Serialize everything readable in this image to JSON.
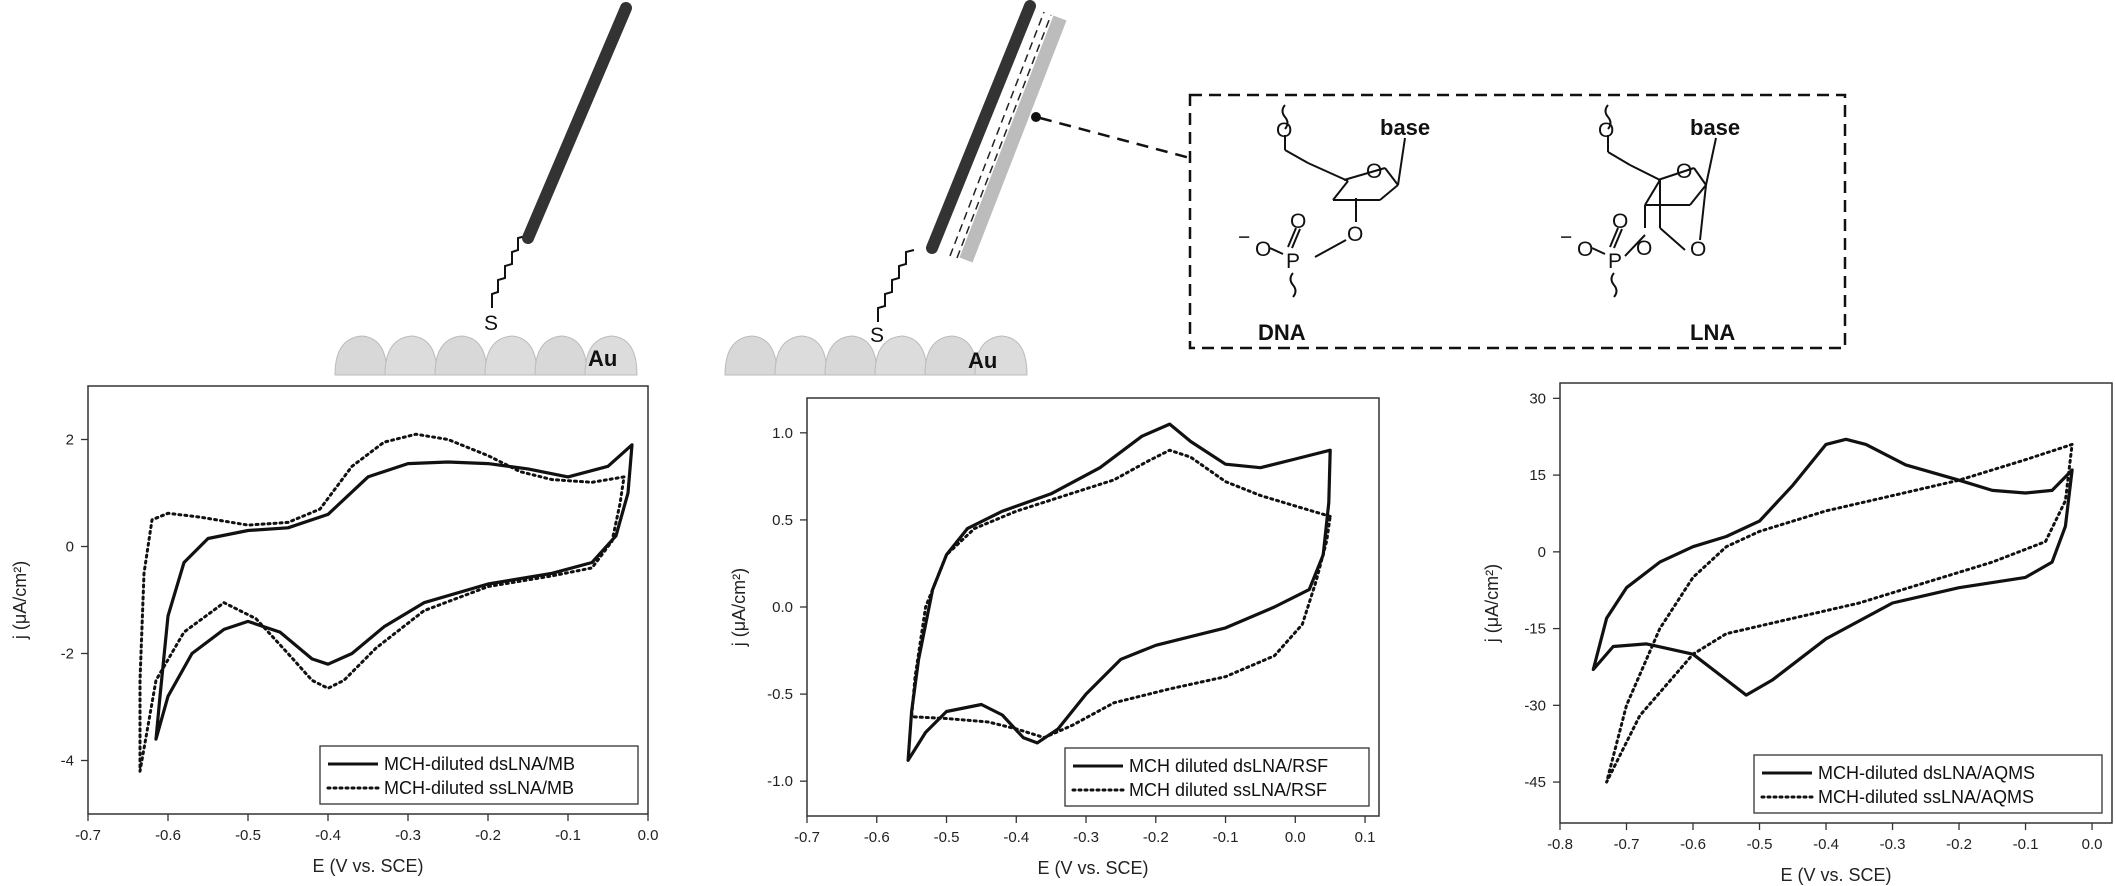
{
  "schematic": {
    "sulfur_label": "S",
    "gold_label": "Au",
    "inset": {
      "base_label": "base",
      "dna_label": "DNA",
      "lna_label": "LNA",
      "oxygen": "O",
      "phosphorus": "P",
      "charge": "−"
    }
  },
  "chart_data": [
    {
      "type": "line",
      "xlabel": "E (V vs. SCE)",
      "ylabel": "j (μA/cm²)",
      "xlim": [
        -0.7,
        0.0
      ],
      "ylim": [
        -5,
        3
      ],
      "xticks": [
        -0.7,
        -0.6,
        -0.5,
        -0.4,
        -0.3,
        -0.2,
        -0.1,
        0.0
      ],
      "xtick_labels": [
        "-0.7",
        "-0.6",
        "-0.5",
        "-0.4",
        "-0.3",
        "-0.2",
        "-0.1",
        "0.0"
      ],
      "yticks": [
        -4,
        -2,
        0,
        2
      ],
      "ytick_labels": [
        "-4",
        "-2",
        "0",
        "2"
      ],
      "legend_position": "bottom-right",
      "series": [
        {
          "name": "MCH-diluted dsLNA/MB",
          "style": "solid",
          "points": [
            [
              -0.02,
              1.9
            ],
            [
              -0.05,
              1.5
            ],
            [
              -0.1,
              1.3
            ],
            [
              -0.15,
              1.45
            ],
            [
              -0.2,
              1.55
            ],
            [
              -0.25,
              1.58
            ],
            [
              -0.3,
              1.55
            ],
            [
              -0.35,
              1.3
            ],
            [
              -0.4,
              0.6
            ],
            [
              -0.45,
              0.35
            ],
            [
              -0.5,
              0.3
            ],
            [
              -0.55,
              0.15
            ],
            [
              -0.58,
              -0.3
            ],
            [
              -0.6,
              -1.3
            ],
            [
              -0.61,
              -2.8
            ],
            [
              -0.615,
              -3.6
            ],
            [
              -0.6,
              -2.8
            ],
            [
              -0.57,
              -2.0
            ],
            [
              -0.53,
              -1.55
            ],
            [
              -0.5,
              -1.4
            ],
            [
              -0.46,
              -1.6
            ],
            [
              -0.42,
              -2.1
            ],
            [
              -0.4,
              -2.2
            ],
            [
              -0.37,
              -2.0
            ],
            [
              -0.33,
              -1.5
            ],
            [
              -0.28,
              -1.05
            ],
            [
              -0.2,
              -0.7
            ],
            [
              -0.12,
              -0.5
            ],
            [
              -0.07,
              -0.3
            ],
            [
              -0.04,
              0.2
            ],
            [
              -0.025,
              1.0
            ],
            [
              -0.02,
              1.9
            ]
          ]
        },
        {
          "name": "MCH-diluted ssLNA/MB",
          "style": "dotted",
          "points": [
            [
              -0.03,
              1.3
            ],
            [
              -0.07,
              1.2
            ],
            [
              -0.12,
              1.25
            ],
            [
              -0.16,
              1.4
            ],
            [
              -0.2,
              1.7
            ],
            [
              -0.25,
              2.0
            ],
            [
              -0.29,
              2.1
            ],
            [
              -0.33,
              1.95
            ],
            [
              -0.37,
              1.5
            ],
            [
              -0.41,
              0.7
            ],
            [
              -0.45,
              0.45
            ],
            [
              -0.5,
              0.4
            ],
            [
              -0.56,
              0.55
            ],
            [
              -0.6,
              0.62
            ],
            [
              -0.62,
              0.5
            ],
            [
              -0.63,
              -0.5
            ],
            [
              -0.635,
              -2.5
            ],
            [
              -0.635,
              -4.2
            ],
            [
              -0.615,
              -2.5
            ],
            [
              -0.58,
              -1.6
            ],
            [
              -0.53,
              -1.05
            ],
            [
              -0.49,
              -1.35
            ],
            [
              -0.45,
              -2.0
            ],
            [
              -0.42,
              -2.5
            ],
            [
              -0.4,
              -2.65
            ],
            [
              -0.38,
              -2.5
            ],
            [
              -0.34,
              -1.9
            ],
            [
              -0.28,
              -1.2
            ],
            [
              -0.2,
              -0.75
            ],
            [
              -0.12,
              -0.55
            ],
            [
              -0.07,
              -0.4
            ],
            [
              -0.045,
              0.1
            ],
            [
              -0.035,
              0.8
            ],
            [
              -0.03,
              1.3
            ]
          ]
        }
      ]
    },
    {
      "type": "line",
      "xlabel": "E (V vs. SCE)",
      "ylabel": "j (μA/cm²)",
      "xlim": [
        -0.7,
        0.12
      ],
      "ylim": [
        -1.2,
        1.2
      ],
      "xticks": [
        -0.7,
        -0.6,
        -0.5,
        -0.4,
        -0.3,
        -0.2,
        -0.1,
        0.0,
        0.1
      ],
      "xtick_labels": [
        "-0.7",
        "-0.6",
        "-0.5",
        "-0.4",
        "-0.3",
        "-0.2",
        "-0.1",
        "0.0",
        "0.1"
      ],
      "yticks": [
        -1.0,
        -0.5,
        0.0,
        0.5,
        1.0
      ],
      "ytick_labels": [
        "-1.0",
        "-0.5",
        "0.0",
        "0.5",
        "1.0"
      ],
      "legend_position": "bottom-right",
      "series": [
        {
          "name": "MCH diluted dsLNA/RSF",
          "style": "solid",
          "points": [
            [
              0.05,
              0.9
            ],
            [
              0.0,
              0.85
            ],
            [
              -0.05,
              0.8
            ],
            [
              -0.1,
              0.82
            ],
            [
              -0.15,
              0.95
            ],
            [
              -0.18,
              1.05
            ],
            [
              -0.22,
              0.98
            ],
            [
              -0.28,
              0.8
            ],
            [
              -0.35,
              0.65
            ],
            [
              -0.42,
              0.55
            ],
            [
              -0.47,
              0.45
            ],
            [
              -0.5,
              0.3
            ],
            [
              -0.52,
              0.1
            ],
            [
              -0.54,
              -0.3
            ],
            [
              -0.55,
              -0.6
            ],
            [
              -0.555,
              -0.88
            ],
            [
              -0.53,
              -0.72
            ],
            [
              -0.5,
              -0.6
            ],
            [
              -0.45,
              -0.56
            ],
            [
              -0.42,
              -0.62
            ],
            [
              -0.39,
              -0.75
            ],
            [
              -0.37,
              -0.78
            ],
            [
              -0.34,
              -0.7
            ],
            [
              -0.3,
              -0.5
            ],
            [
              -0.25,
              -0.3
            ],
            [
              -0.2,
              -0.22
            ],
            [
              -0.1,
              -0.12
            ],
            [
              -0.03,
              0.0
            ],
            [
              0.02,
              0.1
            ],
            [
              0.04,
              0.3
            ],
            [
              0.048,
              0.6
            ],
            [
              0.05,
              0.9
            ]
          ]
        },
        {
          "name": "MCH diluted ssLNA/RSF",
          "style": "dotted",
          "points": [
            [
              0.05,
              0.52
            ],
            [
              0.0,
              0.58
            ],
            [
              -0.05,
              0.64
            ],
            [
              -0.1,
              0.72
            ],
            [
              -0.15,
              0.86
            ],
            [
              -0.18,
              0.9
            ],
            [
              -0.21,
              0.84
            ],
            [
              -0.26,
              0.73
            ],
            [
              -0.33,
              0.64
            ],
            [
              -0.4,
              0.55
            ],
            [
              -0.46,
              0.45
            ],
            [
              -0.5,
              0.3
            ],
            [
              -0.53,
              0.0
            ],
            [
              -0.545,
              -0.4
            ],
            [
              -0.55,
              -0.63
            ],
            [
              -0.5,
              -0.64
            ],
            [
              -0.44,
              -0.66
            ],
            [
              -0.4,
              -0.7
            ],
            [
              -0.36,
              -0.75
            ],
            [
              -0.32,
              -0.68
            ],
            [
              -0.26,
              -0.55
            ],
            [
              -0.18,
              -0.47
            ],
            [
              -0.1,
              -0.4
            ],
            [
              -0.03,
              -0.28
            ],
            [
              0.01,
              -0.1
            ],
            [
              0.03,
              0.15
            ],
            [
              0.045,
              0.38
            ],
            [
              0.05,
              0.52
            ]
          ]
        }
      ]
    },
    {
      "type": "line",
      "xlabel": "E (V vs. SCE)",
      "ylabel": "j (μA/cm²)",
      "xlim": [
        -0.8,
        0.03
      ],
      "ylim": [
        -53,
        33
      ],
      "xticks": [
        -0.8,
        -0.7,
        -0.6,
        -0.5,
        -0.4,
        -0.3,
        -0.2,
        -0.1,
        0.0
      ],
      "xtick_labels": [
        "-0.8",
        "-0.7",
        "-0.6",
        "-0.5",
        "-0.4",
        "-0.3",
        "-0.2",
        "-0.1",
        "0.0"
      ],
      "yticks": [
        -45,
        -30,
        -15,
        0,
        15,
        30
      ],
      "ytick_labels": [
        "-45",
        "-30",
        "-15",
        "0",
        "15",
        "30"
      ],
      "legend_position": "bottom-right",
      "series": [
        {
          "name": "MCH-diluted dsLNA/AQMS",
          "style": "solid",
          "points": [
            [
              -0.03,
              16
            ],
            [
              -0.06,
              12
            ],
            [
              -0.1,
              11.5
            ],
            [
              -0.15,
              12
            ],
            [
              -0.2,
              14
            ],
            [
              -0.28,
              17
            ],
            [
              -0.34,
              21
            ],
            [
              -0.37,
              22
            ],
            [
              -0.4,
              21
            ],
            [
              -0.45,
              13
            ],
            [
              -0.5,
              6
            ],
            [
              -0.55,
              3
            ],
            [
              -0.6,
              1
            ],
            [
              -0.65,
              -2
            ],
            [
              -0.7,
              -7
            ],
            [
              -0.73,
              -13
            ],
            [
              -0.75,
              -23
            ],
            [
              -0.72,
              -18.5
            ],
            [
              -0.67,
              -18
            ],
            [
              -0.6,
              -20
            ],
            [
              -0.56,
              -24
            ],
            [
              -0.52,
              -28
            ],
            [
              -0.48,
              -25
            ],
            [
              -0.4,
              -17
            ],
            [
              -0.3,
              -10
            ],
            [
              -0.2,
              -7
            ],
            [
              -0.1,
              -5
            ],
            [
              -0.06,
              -2
            ],
            [
              -0.04,
              5
            ],
            [
              -0.03,
              16
            ]
          ]
        },
        {
          "name": "MCH-diluted ssLNA/AQMS",
          "style": "dotted",
          "points": [
            [
              -0.03,
              21
            ],
            [
              -0.1,
              18
            ],
            [
              -0.2,
              14
            ],
            [
              -0.3,
              11
            ],
            [
              -0.4,
              8
            ],
            [
              -0.5,
              4
            ],
            [
              -0.55,
              1
            ],
            [
              -0.6,
              -5
            ],
            [
              -0.65,
              -15
            ],
            [
              -0.7,
              -30
            ],
            [
              -0.73,
              -45
            ],
            [
              -0.68,
              -32
            ],
            [
              -0.6,
              -20
            ],
            [
              -0.55,
              -16
            ],
            [
              -0.45,
              -13
            ],
            [
              -0.35,
              -10
            ],
            [
              -0.25,
              -6
            ],
            [
              -0.15,
              -2
            ],
            [
              -0.07,
              2
            ],
            [
              -0.04,
              10
            ],
            [
              -0.03,
              21
            ]
          ]
        }
      ]
    }
  ]
}
